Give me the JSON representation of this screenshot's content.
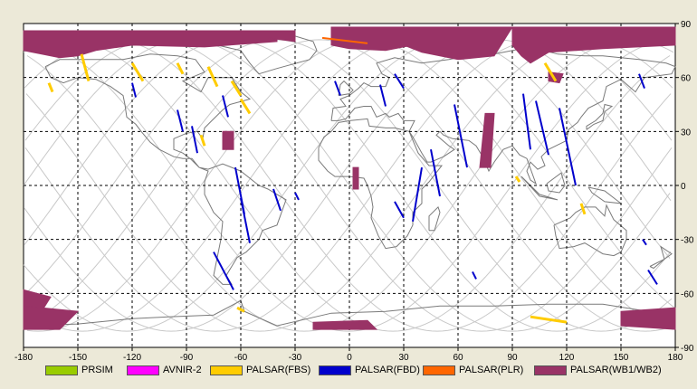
{
  "axes": {
    "x_ticks": [
      "-180",
      "-150",
      "-120",
      "-90",
      "-60",
      "-30",
      "0",
      "30",
      "60",
      "90",
      "120",
      "150",
      "180"
    ],
    "y_ticks": [
      "90",
      "60",
      "30",
      "0",
      "-30",
      "-60",
      "-90"
    ]
  },
  "legend": [
    {
      "label": "PRSIM",
      "color": "#99cc00"
    },
    {
      "label": "AVNIR-2",
      "color": "#ff00ff"
    },
    {
      "label": "PALSAR(FBS)",
      "color": "#ffcc00"
    },
    {
      "label": "PALSAR(FBD)",
      "color": "#0000cc"
    },
    {
      "label": "PALSAR(PLR)",
      "color": "#ff6600"
    },
    {
      "label": "PALSAR(WB1/WB2)",
      "color": "#993366"
    }
  ],
  "chart_data": {
    "type": "map",
    "xlim": [
      -180,
      180
    ],
    "ylim": [
      -90,
      90
    ],
    "grid": true,
    "fbd_tracks": [
      [
        -120,
        57,
        -118,
        49
      ],
      [
        -95,
        42,
        -92,
        30
      ],
      [
        -87,
        33,
        -84,
        18
      ],
      [
        -70,
        50,
        -67,
        38
      ],
      [
        -63,
        10,
        -58,
        -16
      ],
      [
        -60,
        -7,
        -55,
        -32
      ],
      [
        -75,
        -37,
        -64,
        -58
      ],
      [
        -42,
        -2,
        -38,
        -14
      ],
      [
        -8,
        58,
        -5,
        50
      ],
      [
        17,
        56,
        20,
        44
      ],
      [
        25,
        62,
        30,
        54
      ],
      [
        25,
        -9,
        30,
        -18
      ],
      [
        45,
        20,
        50,
        -6
      ],
      [
        58,
        45,
        65,
        10
      ],
      [
        68,
        -48,
        70,
        -52
      ],
      [
        96,
        51,
        100,
        20
      ],
      [
        103,
        47,
        110,
        17
      ],
      [
        116,
        43,
        125,
        0
      ],
      [
        160,
        62,
        163,
        54
      ],
      [
        162,
        -30,
        164,
        -33
      ],
      [
        165,
        -47,
        170,
        -55
      ],
      [
        -30,
        -4,
        -28,
        -8
      ],
      [
        40,
        10,
        35,
        -20
      ]
    ],
    "fbs_tracks": [
      [
        -148,
        73,
        -144,
        58
      ],
      [
        -166,
        57,
        -164,
        52
      ],
      [
        -120,
        68,
        -114,
        58
      ],
      [
        -95,
        68,
        -92,
        62
      ],
      [
        -78,
        66,
        -73,
        55
      ],
      [
        -60,
        48,
        -55,
        40
      ],
      [
        -82,
        28,
        -80,
        22
      ],
      [
        -65,
        58,
        -60,
        50
      ],
      [
        108,
        68,
        114,
        58
      ],
      [
        -62,
        -68,
        -58,
        -70
      ],
      [
        100,
        -73,
        120,
        -76
      ],
      [
        128,
        -10,
        130,
        -16
      ],
      [
        92,
        5,
        94,
        2
      ]
    ],
    "wb_regions": [
      [
        [
          -180,
          86
        ],
        [
          -40,
          86
        ],
        [
          -40,
          80
        ],
        [
          -80,
          77
        ],
        [
          -120,
          78
        ],
        [
          -140,
          75
        ],
        [
          -150,
          72
        ],
        [
          -160,
          71
        ],
        [
          -170,
          73
        ],
        [
          -180,
          75
        ]
      ],
      [
        [
          -70,
          30
        ],
        [
          -64,
          30
        ],
        [
          -64,
          20
        ],
        [
          -70,
          20
        ]
      ],
      [
        [
          -45,
          86
        ],
        [
          -30,
          86
        ],
        [
          -30,
          80
        ],
        [
          -45,
          82
        ]
      ],
      [
        [
          -10,
          88
        ],
        [
          30,
          88
        ],
        [
          35,
          78
        ],
        [
          20,
          75
        ],
        [
          0,
          76
        ],
        [
          -10,
          78
        ]
      ],
      [
        [
          30,
          88
        ],
        [
          90,
          88
        ],
        [
          80,
          72
        ],
        [
          60,
          70
        ],
        [
          40,
          74
        ],
        [
          30,
          78
        ]
      ],
      [
        [
          90,
          88
        ],
        [
          180,
          88
        ],
        [
          180,
          78
        ],
        [
          140,
          76
        ],
        [
          110,
          74
        ],
        [
          100,
          68
        ],
        [
          95,
          72
        ],
        [
          90,
          78
        ]
      ],
      [
        [
          110,
          63
        ],
        [
          118,
          62
        ],
        [
          116,
          57
        ],
        [
          110,
          58
        ]
      ],
      [
        [
          75,
          40
        ],
        [
          80,
          40
        ],
        [
          78,
          10
        ],
        [
          72,
          10
        ]
      ],
      [
        [
          2,
          10
        ],
        [
          5,
          10
        ],
        [
          5,
          -2
        ],
        [
          2,
          -2
        ]
      ],
      [
        [
          -180,
          -58
        ],
        [
          -165,
          -62
        ],
        [
          -170,
          -70
        ],
        [
          -180,
          -75
        ]
      ],
      [
        [
          -180,
          -67
        ],
        [
          -150,
          -70
        ],
        [
          -160,
          -80
        ],
        [
          -180,
          -80
        ]
      ],
      [
        [
          -20,
          -76
        ],
        [
          10,
          -75
        ],
        [
          15,
          -80
        ],
        [
          -20,
          -80
        ]
      ],
      [
        [
          150,
          -70
        ],
        [
          180,
          -68
        ],
        [
          180,
          -80
        ],
        [
          150,
          -78
        ]
      ]
    ],
    "plr_tracks": [
      [
        -15,
        82,
        10,
        79
      ]
    ]
  }
}
